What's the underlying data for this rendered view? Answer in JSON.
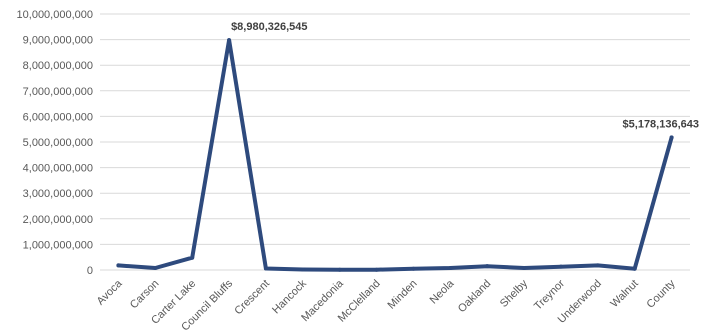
{
  "chart_data": {
    "type": "line",
    "title": "",
    "xlabel": "",
    "ylabel": "",
    "categories": [
      "Avoca",
      "Carson",
      "Carter Lake",
      "Council Bluffs",
      "Crescent",
      "Hancock",
      "Macedonia",
      "McClelland",
      "Minden",
      "Neola",
      "Oakland",
      "Shelby",
      "Treynor",
      "Underwood",
      "Walnut",
      "County"
    ],
    "series": [
      {
        "values": [
          180000000,
          80000000,
          480000000,
          8980326545,
          60000000,
          20000000,
          10000000,
          10000000,
          50000000,
          80000000,
          150000000,
          80000000,
          130000000,
          180000000,
          50000000,
          5178136643
        ]
      }
    ],
    "ylim": [
      0,
      10000000000
    ],
    "yticks": [
      0,
      1000000000,
      2000000000,
      3000000000,
      4000000000,
      5000000000,
      6000000000,
      7000000000,
      8000000000,
      9000000000,
      10000000000
    ],
    "ytick_labels": [
      "0",
      "1,000,000,000",
      "2,000,000,000",
      "3,000,000,000",
      "4,000,000,000",
      "5,000,000,000",
      "6,000,000,000",
      "7,000,000,000",
      "8,000,000,000",
      "9,000,000,000",
      "10,000,000,000"
    ],
    "annotations": [
      {
        "index": 3,
        "text": "$8,980,326,545"
      },
      {
        "index": 15,
        "text": "$5,178,136,643"
      }
    ],
    "grid": true,
    "legend": "none",
    "line_color": "#2e4a7d"
  }
}
